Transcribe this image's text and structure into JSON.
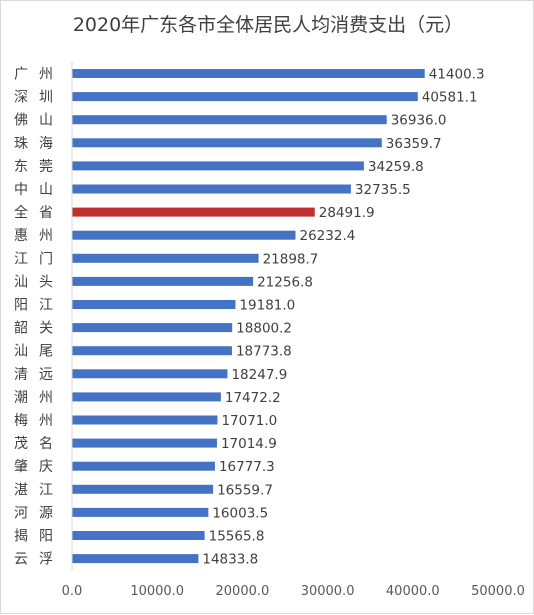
{
  "chart_data": {
    "type": "bar",
    "orientation": "horizontal",
    "title": "2020年广东各市全体居民人均消费支出（元）",
    "xlabel": "",
    "ylabel": "",
    "categories": [
      "广州",
      "深圳",
      "佛山",
      "珠海",
      "东莞",
      "中山",
      "全省",
      "惠州",
      "江门",
      "汕头",
      "阳江",
      "韶关",
      "汕尾",
      "清远",
      "潮州",
      "梅州",
      "茂名",
      "肇庆",
      "湛江",
      "河源",
      "揭阳",
      "云浮"
    ],
    "values": [
      41400.3,
      40581.1,
      36936.0,
      36359.7,
      34259.8,
      32735.5,
      28491.9,
      26232.4,
      21898.7,
      21256.8,
      19181.0,
      18800.2,
      18773.8,
      18247.9,
      17472.2,
      17071.0,
      17014.9,
      16777.3,
      16559.7,
      16003.5,
      15565.8,
      14833.8
    ],
    "value_labels": [
      "41400.3",
      "40581.1",
      "36936.0",
      "36359.7",
      "34259.8",
      "32735.5",
      "28491.9",
      "26232.4",
      "21898.7",
      "21256.8",
      "19181.0",
      "18800.2",
      "18773.8",
      "18247.9",
      "17472.2",
      "17071.0",
      "17014.9",
      "16777.3",
      "16559.7",
      "16003.5",
      "15565.8",
      "14833.8"
    ],
    "xlim": [
      0,
      50000
    ],
    "xticks": [
      0,
      10000,
      20000,
      30000,
      40000,
      50000
    ],
    "xtick_labels": [
      "0.0",
      "10000.0",
      "20000.0",
      "30000.0",
      "40000.0",
      "50000.0"
    ],
    "grid": false,
    "legend": "none",
    "colors": {
      "bar": "#4472c4",
      "highlight": "#c0302e",
      "axis": "#d9d9d9"
    },
    "highlight_category": "全省"
  }
}
